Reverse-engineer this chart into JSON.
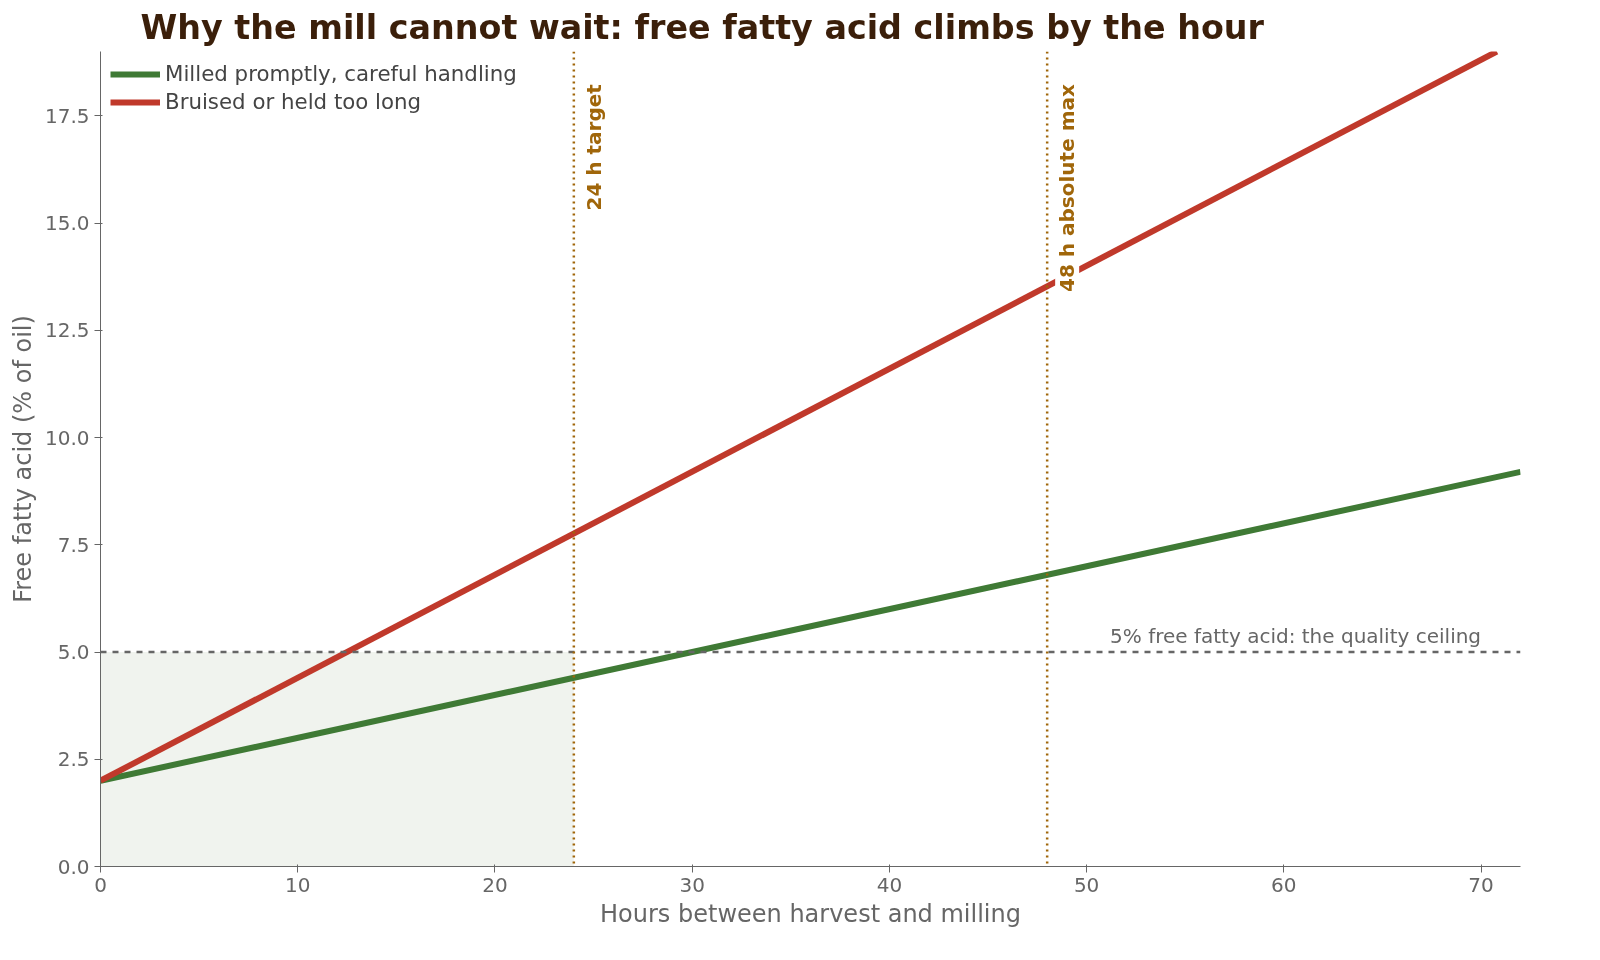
{
  "chart_data": {
    "type": "line",
    "title": "Why the mill cannot wait: free fatty acid climbs by the hour",
    "xlabel": "Hours between harvest and milling",
    "ylabel": "Free fatty acid (% of oil)",
    "series": [
      {
        "name": "Milled promptly, careful handling",
        "color": "#3f7a35",
        "x": [
          0,
          72
        ],
        "values": [
          2.0,
          9.2
        ]
      },
      {
        "name": "Bruised or held too long",
        "color": "#c0392b",
        "x": [
          0,
          70.8
        ],
        "values": [
          2.0,
          19.0
        ]
      }
    ],
    "xlim": [
      0,
      72
    ],
    "ylim": [
      0,
      19
    ],
    "xticks": [
      0,
      10,
      20,
      30,
      40,
      50,
      60,
      70
    ],
    "yticks": [
      {
        "value": 0,
        "label": "0.0"
      },
      {
        "value": 2.5,
        "label": "2.5"
      },
      {
        "value": 5,
        "label": "5.0"
      },
      {
        "value": 7.5,
        "label": "7.5"
      },
      {
        "value": 10,
        "label": "10.0"
      },
      {
        "value": 12.5,
        "label": "12.5"
      },
      {
        "value": 15,
        "label": "15.0"
      },
      {
        "value": 17.5,
        "label": "17.5"
      }
    ],
    "ref_lines": [
      {
        "axis": "y",
        "value": 5,
        "label": "5% free fatty acid: the quality ceiling",
        "color": "#666666",
        "line_style": "dashed"
      },
      {
        "axis": "x",
        "value": 24,
        "label": "24 h target",
        "color": "#a0660a",
        "line_style": "dotted"
      },
      {
        "axis": "x",
        "value": 48,
        "label": "48 h absolute max",
        "color": "#a0660a",
        "line_style": "dotted"
      }
    ],
    "bands": [
      {
        "axis": "x",
        "from": 0,
        "to": 24,
        "color": "#f0f3ee"
      }
    ],
    "grid": false,
    "legend": "top left",
    "marker": "none",
    "line_style": "solid"
  }
}
